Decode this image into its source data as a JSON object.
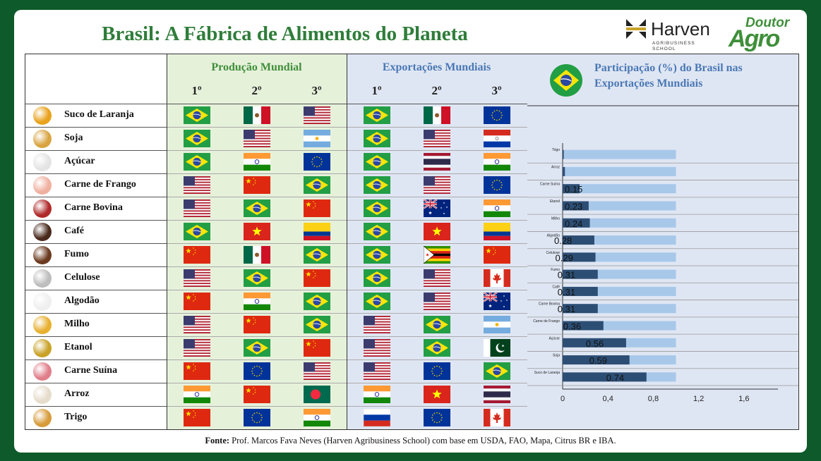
{
  "title": "Brasil: A Fábrica de Alimentos do Planeta",
  "brands": {
    "harven_name": "Harven",
    "harven_sub": "AGRIBUSINESS SCHOOL",
    "doutor_top": "Doutor",
    "doutor_bottom": "Agro"
  },
  "table": {
    "production_header": "Produção Mundial",
    "exports_header": "Exportações Mundiais",
    "ranks": [
      "1º",
      "2º",
      "3º"
    ],
    "rows": [
      {
        "product": "Suco de Laranja",
        "icon_color": "#e8a21c",
        "production": [
          "BR",
          "MX",
          "US"
        ],
        "exports": [
          "BR",
          "MX",
          "EU"
        ]
      },
      {
        "product": "Soja",
        "icon_color": "#d9a441",
        "production": [
          "BR",
          "US",
          "AR"
        ],
        "exports": [
          "BR",
          "US",
          "PY"
        ]
      },
      {
        "product": "Açúcar",
        "icon_color": "#e4e4e4",
        "production": [
          "BR",
          "IN",
          "EU"
        ],
        "exports": [
          "BR",
          "TH",
          "IN"
        ]
      },
      {
        "product": "Carne de Frango",
        "icon_color": "#f0b0a0",
        "production": [
          "US",
          "CN",
          "BR"
        ],
        "exports": [
          "BR",
          "US",
          "EU"
        ]
      },
      {
        "product": "Carne Bovina",
        "icon_color": "#b02a2a",
        "production": [
          "US",
          "BR",
          "CN"
        ],
        "exports": [
          "BR",
          "AU",
          "IN"
        ]
      },
      {
        "product": "Café",
        "icon_color": "#4a2a1c",
        "production": [
          "BR",
          "VN",
          "CO"
        ],
        "exports": [
          "BR",
          "VN",
          "CO"
        ]
      },
      {
        "product": "Fumo",
        "icon_color": "#6b3a1f",
        "production": [
          "CN",
          "MX",
          "BR"
        ],
        "exports": [
          "BR",
          "ZW",
          "CN"
        ]
      },
      {
        "product": "Celulose",
        "icon_color": "#bdbdbd",
        "production": [
          "US",
          "BR",
          "CN"
        ],
        "exports": [
          "BR",
          "US",
          "CA"
        ]
      },
      {
        "product": "Algodão",
        "icon_color": "#efefef",
        "production": [
          "CN",
          "IN",
          "BR"
        ],
        "exports": [
          "BR",
          "US",
          "AU"
        ]
      },
      {
        "product": "Milho",
        "icon_color": "#e8b030",
        "production": [
          "US",
          "CN",
          "BR"
        ],
        "exports": [
          "US",
          "BR",
          "AR"
        ]
      },
      {
        "product": "Etanol",
        "icon_color": "#c9a227",
        "production": [
          "US",
          "BR",
          "CN"
        ],
        "exports": [
          "US",
          "BR",
          "PK"
        ]
      },
      {
        "product": "Carne Suína",
        "icon_color": "#e07f8a",
        "production": [
          "CN",
          "EU",
          "US"
        ],
        "exports": [
          "US",
          "EU",
          "BR"
        ]
      },
      {
        "product": "Arroz",
        "icon_color": "#e6dccb",
        "production": [
          "IN",
          "CN",
          "BD"
        ],
        "exports": [
          "IN",
          "VN",
          "TH"
        ]
      },
      {
        "product": "Trigo",
        "icon_color": "#d79b3a",
        "production": [
          "CN",
          "EU",
          "IN"
        ],
        "exports": [
          "RU",
          "EU",
          "CA"
        ]
      }
    ]
  },
  "chart_data": {
    "type": "bar",
    "title": "Participação (%) do Brasil nas Exportações Mundiais",
    "categories": [
      "Trigo",
      "Arroz",
      "Carne Suína",
      "Etanol",
      "Milho",
      "Algodão",
      "Celulose",
      "Fumo",
      "Café",
      "Carne Bovina",
      "Carne de Frango",
      "Açúcar",
      "Soja",
      "Suco de Laranja"
    ],
    "values": [
      0.01,
      0.02,
      0.15,
      0.23,
      0.24,
      0.28,
      0.29,
      0.31,
      0.31,
      0.31,
      0.36,
      0.56,
      0.59,
      0.74
    ],
    "data_labels": [
      "",
      "",
      "0.15",
      "0.23",
      "0.24",
      "0.28",
      "0.29",
      "0.31",
      "0.31",
      "0.31",
      "0.36",
      "0.56",
      "0.59",
      "0.74"
    ],
    "background_value": 1.0,
    "xticks": [
      "0",
      "0,4",
      "0,8",
      "1,2",
      "1,6"
    ],
    "xtick_values": [
      0,
      0.4,
      0.8,
      1.2,
      1.6
    ],
    "xlim": [
      0,
      1.9
    ],
    "orientation": "horizontal",
    "colors": {
      "bar": "#2d4e74",
      "background_bar": "#a8c8ea"
    }
  },
  "footer": {
    "label": "Fonte:",
    "text": " Prof. Marcos Fava Neves (Harven Agribusiness School) com base em USDA, FAO, Mapa, Citrus BR e IBA."
  },
  "colors": {
    "production_header": "#3f8f3a",
    "exports_header": "#4a78b5"
  }
}
